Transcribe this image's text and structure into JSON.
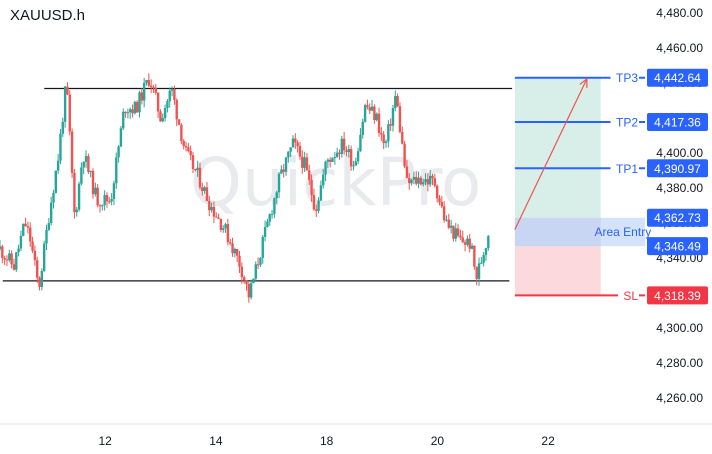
{
  "symbol": "XAUUSD.h",
  "watermark": "QuickPro",
  "colors": {
    "bull": "#26a69a",
    "bear": "#ef5350",
    "tp_line": "#2962ff",
    "sl_line": "#f23645",
    "profit_zone": "#d7efe8",
    "loss_zone": "#fbd9dd",
    "entry_zone": "#d4e3fb",
    "range_line": "#131722",
    "arrow": "#ef5350"
  },
  "chart_data": {
    "type": "candlestick",
    "title": "XAUUSD.h",
    "ylim": [
      4245,
      4487
    ],
    "y_ticks": [
      "4,260.00",
      "4,280.00",
      "4,300.00",
      "4,320.00",
      "4,340.00",
      "4,360.00",
      "4,380.00",
      "4,400.00",
      "4,420.00",
      "4,440.00",
      "4,460.00",
      "4,480.00"
    ],
    "x_ticks": [
      "12",
      "14",
      "18",
      "20",
      "22"
    ],
    "x_tick_positions_day": [
      12,
      14,
      16,
      18,
      20
    ],
    "xlim_day": [
      10.1,
      21.75
    ],
    "range_box": {
      "upper": 4436.5,
      "lower": 4326.7
    },
    "levels": [
      {
        "name": "TP3",
        "price": 4442.64,
        "label": "4,442.64"
      },
      {
        "name": "TP2",
        "price": 4417.36,
        "label": "4,417.36"
      },
      {
        "name": "TP1",
        "price": 4390.97,
        "label": "4,390.97"
      },
      {
        "name": "SL",
        "price": 4318.39,
        "label": "4,318.39"
      }
    ],
    "entry_zone": {
      "name": "Area Entry",
      "high": 4362.73,
      "low": 4346.49,
      "high_label": "4,362.73",
      "low_label": "4,346.49"
    },
    "trade_box": {
      "start_day": 19.4,
      "end_day": 20.95
    },
    "arrow": {
      "from": [
        19.4,
        4356
      ],
      "to": [
        20.7,
        4442
      ]
    },
    "candle_anchors": [
      [
        10.1,
        4345
      ],
      [
        10.35,
        4335
      ],
      [
        10.55,
        4360
      ],
      [
        10.65,
        4350
      ],
      [
        10.8,
        4322
      ],
      [
        11.0,
        4368
      ],
      [
        11.15,
        4397
      ],
      [
        11.3,
        4440
      ],
      [
        11.45,
        4362
      ],
      [
        11.6,
        4400
      ],
      [
        11.85,
        4373
      ],
      [
        12.1,
        4373
      ],
      [
        12.35,
        4426
      ],
      [
        12.55,
        4425
      ],
      [
        12.8,
        4443
      ],
      [
        13.0,
        4420
      ],
      [
        13.2,
        4436
      ],
      [
        13.45,
        4400
      ],
      [
        13.7,
        4385
      ],
      [
        13.9,
        4370
      ],
      [
        14.15,
        4357
      ],
      [
        14.45,
        4335
      ],
      [
        14.6,
        4318
      ],
      [
        14.9,
        4355
      ],
      [
        15.15,
        4385
      ],
      [
        15.4,
        4405
      ],
      [
        15.6,
        4393
      ],
      [
        15.8,
        4368
      ],
      [
        16.0,
        4395
      ],
      [
        16.3,
        4405
      ],
      [
        16.5,
        4393
      ],
      [
        16.7,
        4427
      ],
      [
        16.9,
        4420
      ],
      [
        17.05,
        4402
      ],
      [
        17.25,
        4433
      ],
      [
        17.45,
        4382
      ],
      [
        17.7,
        4385
      ],
      [
        17.95,
        4383
      ],
      [
        18.15,
        4360
      ],
      [
        18.4,
        4350
      ],
      [
        18.6,
        4348
      ],
      [
        18.7,
        4328
      ],
      [
        18.85,
        4345
      ],
      [
        18.95,
        4358
      ]
    ]
  }
}
